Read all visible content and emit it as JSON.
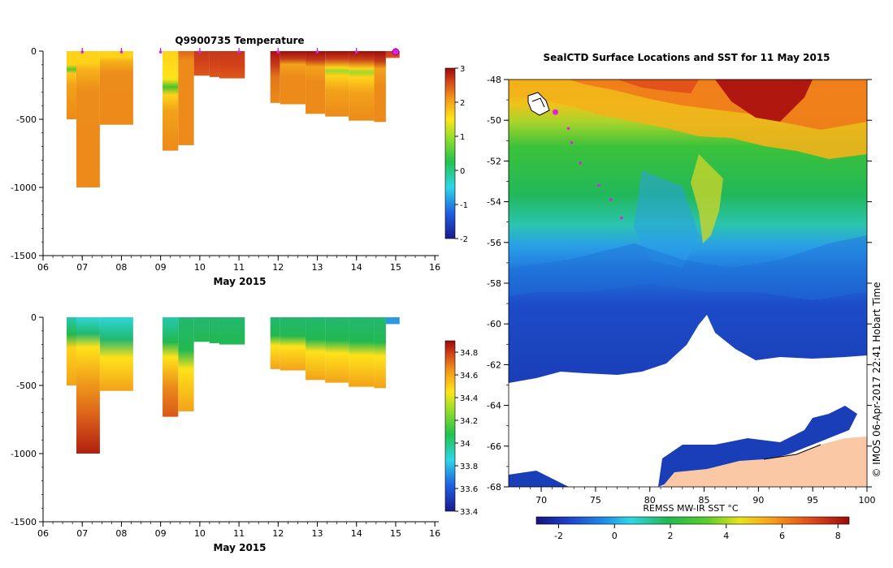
{
  "chart_data": [
    {
      "type": "heatmap",
      "title": "Q9900735  Temperature",
      "xlabel": "May 2015",
      "ylabel": "",
      "x_ticks": [
        "06",
        "07",
        "08",
        "09",
        "10",
        "11",
        "12",
        "13",
        "14",
        "15",
        "16"
      ],
      "y_ticks": [
        "0",
        "-500",
        "-1000",
        "-1500"
      ],
      "xlim": [
        6,
        16.1
      ],
      "ylim": [
        -1500,
        0
      ],
      "colorbar": {
        "ticks": [
          "-2",
          "-1",
          "0",
          "1",
          "2",
          "3"
        ],
        "range": [
          -2,
          3
        ]
      },
      "profile_markers_day": [
        7.0,
        8.0,
        9.0,
        10.0,
        11.0,
        12.0,
        13.0,
        14.0,
        15.0
      ],
      "profiles": [
        {
          "x0": 6.6,
          "x1": 6.85,
          "depth": 500,
          "surface_value": 1.3
        },
        {
          "x0": 6.85,
          "x1": 7.45,
          "depth": 1000,
          "surface_value": 1.4
        },
        {
          "x0": 7.45,
          "x1": 8.3,
          "depth": 540,
          "surface_value": 1.4
        },
        {
          "x0": 9.05,
          "x1": 9.45,
          "depth": 730,
          "surface_value": 1.3
        },
        {
          "x0": 9.45,
          "x1": 9.85,
          "depth": 690,
          "surface_value": 2.2
        },
        {
          "x0": 9.85,
          "x1": 10.25,
          "depth": 180,
          "surface_value": 2.6
        },
        {
          "x0": 10.25,
          "x1": 10.5,
          "depth": 190,
          "surface_value": 2.6
        },
        {
          "x0": 10.5,
          "x1": 11.15,
          "depth": 200,
          "surface_value": 2.6
        },
        {
          "x0": 11.8,
          "x1": 12.05,
          "depth": 380,
          "surface_value": 3.0
        },
        {
          "x0": 12.05,
          "x1": 12.7,
          "depth": 390,
          "surface_value": 3.0
        },
        {
          "x0": 12.7,
          "x1": 13.2,
          "depth": 460,
          "surface_value": 3.0
        },
        {
          "x0": 13.2,
          "x1": 13.8,
          "depth": 480,
          "surface_value": 3.0
        },
        {
          "x0": 13.8,
          "x1": 14.45,
          "depth": 510,
          "surface_value": 3.0
        },
        {
          "x0": 14.45,
          "x1": 14.75,
          "depth": 520,
          "surface_value": 3.0
        },
        {
          "x0": 14.75,
          "x1": 15.1,
          "depth": 50,
          "surface_value": 3.0
        }
      ]
    },
    {
      "type": "heatmap",
      "title": "",
      "xlabel": "May 2015",
      "ylabel": "",
      "x_ticks": [
        "06",
        "07",
        "08",
        "09",
        "10",
        "11",
        "12",
        "13",
        "14",
        "15",
        "16"
      ],
      "y_ticks": [
        "0",
        "-500",
        "-1000",
        "-1500"
      ],
      "xlim": [
        6,
        16.1
      ],
      "ylim": [
        -1500,
        0
      ],
      "colorbar": {
        "ticks": [
          "33.4",
          "33.6",
          "33.8",
          "34",
          "34.2",
          "34.4",
          "34.6",
          "34.8"
        ],
        "range": [
          33.4,
          34.9
        ]
      },
      "profiles": [
        {
          "x0": 6.6,
          "x1": 6.85,
          "depth": 500
        },
        {
          "x0": 6.85,
          "x1": 7.45,
          "depth": 1000
        },
        {
          "x0": 7.45,
          "x1": 8.3,
          "depth": 540
        },
        {
          "x0": 9.05,
          "x1": 9.45,
          "depth": 730
        },
        {
          "x0": 9.45,
          "x1": 9.85,
          "depth": 690
        },
        {
          "x0": 9.85,
          "x1": 10.25,
          "depth": 180
        },
        {
          "x0": 10.25,
          "x1": 10.5,
          "depth": 190
        },
        {
          "x0": 10.5,
          "x1": 11.15,
          "depth": 200
        },
        {
          "x0": 11.8,
          "x1": 12.05,
          "depth": 380
        },
        {
          "x0": 12.05,
          "x1": 12.7,
          "depth": 390
        },
        {
          "x0": 12.7,
          "x1": 13.2,
          "depth": 460
        },
        {
          "x0": 13.2,
          "x1": 13.8,
          "depth": 480
        },
        {
          "x0": 13.8,
          "x1": 14.45,
          "depth": 510
        },
        {
          "x0": 14.45,
          "x1": 14.75,
          "depth": 520
        },
        {
          "x0": 14.75,
          "x1": 15.1,
          "depth": 50
        }
      ]
    },
    {
      "type": "heatmap",
      "title": "SealCTD Surface Locations and SST for 11 May 2015",
      "xlabel": "",
      "ylabel": "",
      "xlim": [
        67,
        100
      ],
      "ylim": [
        -68,
        -48
      ],
      "x_ticks": [
        "70",
        "75",
        "80",
        "85",
        "90",
        "95",
        "100"
      ],
      "y_ticks": [
        "-48",
        "-50",
        "-52",
        "-54",
        "-56",
        "-58",
        "-60",
        "-62",
        "-64",
        "-66",
        "-68"
      ],
      "colorbar": {
        "label": "REMSS MW-IR SST °C",
        "ticks": [
          "-2",
          "0",
          "2",
          "4",
          "6",
          "8"
        ],
        "range": [
          -2.8,
          8.4
        ]
      },
      "track_points": [
        {
          "lon": 71.2,
          "lat": -49.6
        },
        {
          "lon": 72.5,
          "lat": -50.4
        },
        {
          "lon": 72.8,
          "lat": -51.1
        },
        {
          "lon": 73.6,
          "lat": -52.1
        },
        {
          "lon": 75.3,
          "lat": -53.2
        },
        {
          "lon": 76.4,
          "lat": -53.9
        },
        {
          "lon": 77.4,
          "lat": -54.8
        }
      ],
      "current_position": {
        "lon": 71.3,
        "lat": -49.6
      }
    }
  ],
  "credit": "© IMOS 06-Apr-2017 22:41 Hobart Time"
}
